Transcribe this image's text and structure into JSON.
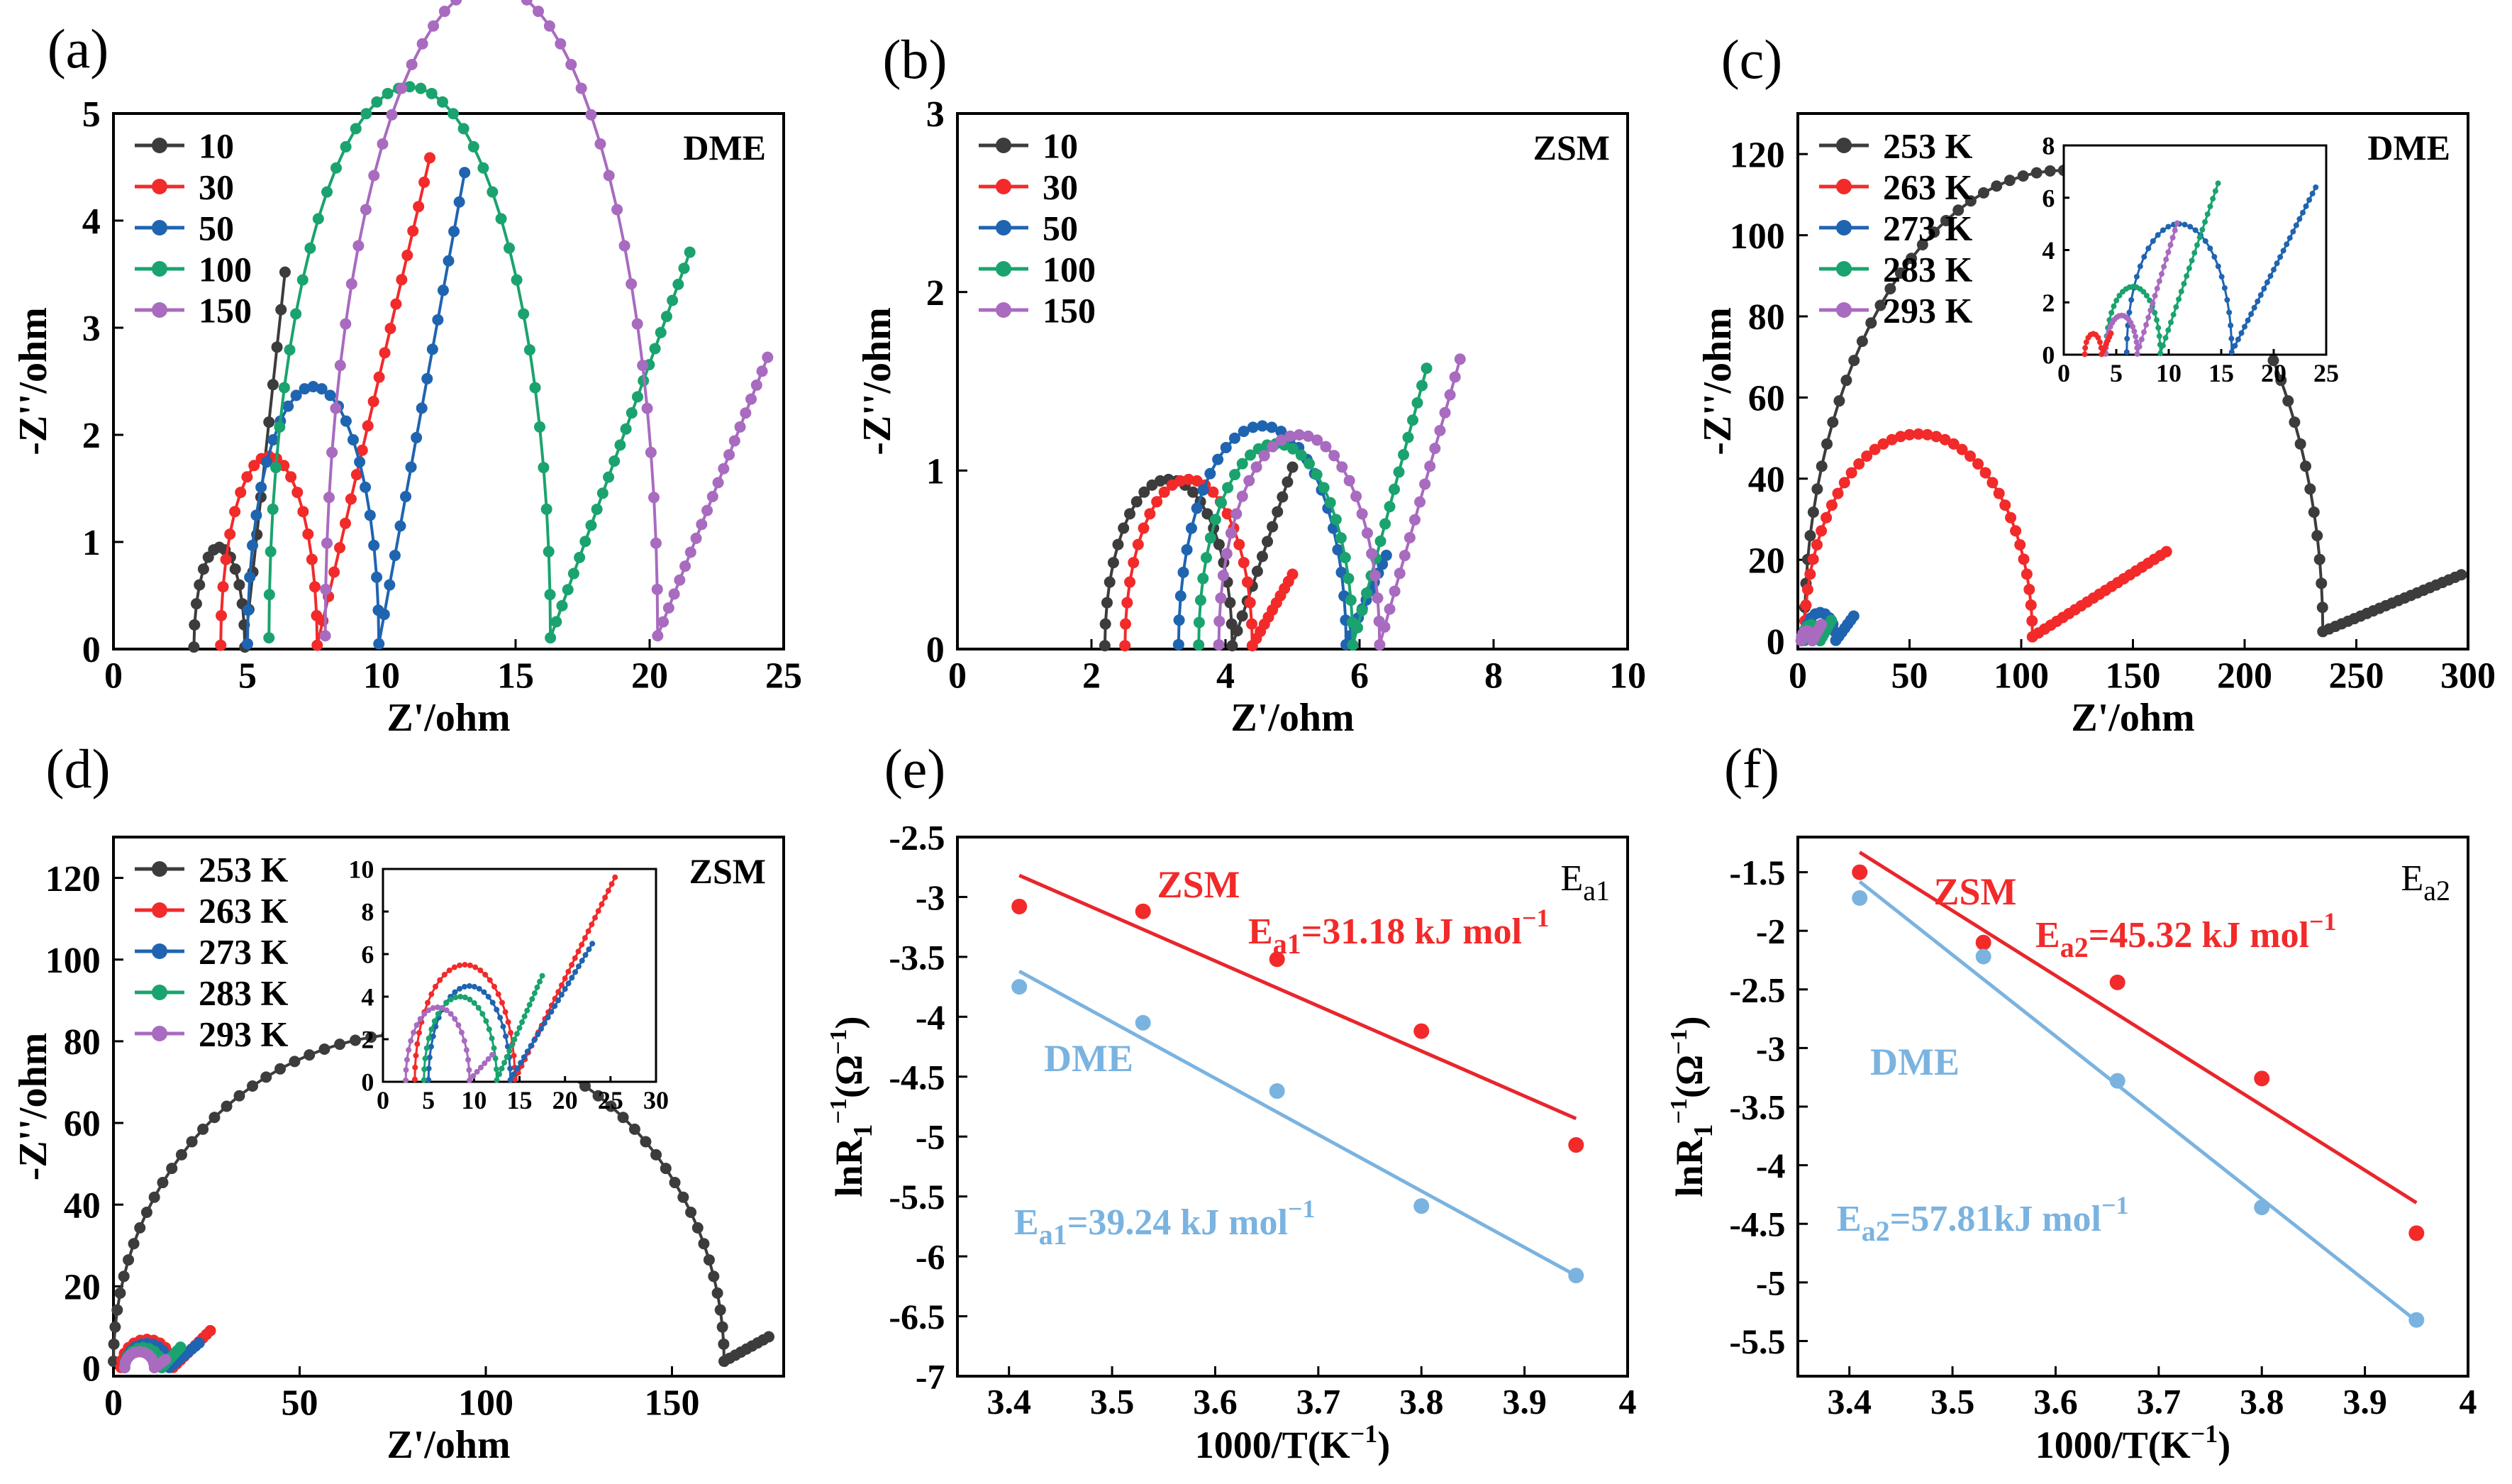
{
  "figure": {
    "colors": {
      "dark": "#3c3c3c",
      "red": "#f22a2a",
      "blue": "#1f64b0",
      "green": "#1aa36e",
      "purple": "#a86bbf",
      "light_blue": "#7ab3e0",
      "fit_red": "#e8262c"
    }
  },
  "chart_data": [
    {
      "id": "a",
      "type": "scatter",
      "panel_label": "(a)",
      "annotation": "DME",
      "xlabel": "Z'/ohm",
      "ylabel": "-Z''/ohm",
      "xlim": [
        0,
        25
      ],
      "ylim": [
        0,
        5
      ],
      "xticks": [
        0,
        5,
        10,
        15,
        20,
        25
      ],
      "yticks": [
        0,
        1,
        2,
        3,
        4,
        5
      ],
      "series": [
        {
          "name": "10",
          "color": "#3c3c3c",
          "x0": 3.0,
          "r": 0.95,
          "tailLen": 1.5,
          "tailRise": 3.5,
          "n": 14,
          "nt": 10
        },
        {
          "name": "30",
          "color": "#f22a2a",
          "x0": 4.0,
          "r": 1.8,
          "tailLen": 4.2,
          "tailRise": 4.55,
          "n": 20,
          "nt": 20
        },
        {
          "name": "50",
          "color": "#1f64b0",
          "x0": 5.0,
          "r": 2.45,
          "tailLen": 3.2,
          "tailRise": 4.4,
          "n": 24,
          "nt": 16
        },
        {
          "name": "100",
          "color": "#1aa36e",
          "x0": 5.8,
          "r": 5.25,
          "tailLen": 5.2,
          "tailRise": 3.6,
          "n": 40,
          "nt": 24
        },
        {
          "name": "150",
          "color": "#a86bbf",
          "x0": 7.9,
          "r": 6.2,
          "tailLen": 4.1,
          "tailRise": 2.6,
          "n": 44,
          "nt": 20
        }
      ]
    },
    {
      "id": "b",
      "type": "scatter",
      "panel_label": "(b)",
      "annotation": "ZSM",
      "xlabel": "Z'/ohm",
      "ylabel": "-Z''/ohm",
      "xlim": [
        0,
        10
      ],
      "ylim": [
        0,
        3
      ],
      "xticks": [
        0,
        2,
        4,
        6,
        8,
        10
      ],
      "yticks": [
        0,
        1,
        2,
        3
      ],
      "series": [
        {
          "name": "10",
          "color": "#3c3c3c",
          "x0": 2.2,
          "r": 0.95,
          "tailLen": 0.9,
          "tailRise": 1.0,
          "n": 24,
          "nt": 12
        },
        {
          "name": "30",
          "color": "#f22a2a",
          "x0": 2.5,
          "r": 0.95,
          "tailLen": 0.6,
          "tailRise": 0.4,
          "n": 24,
          "nt": 10
        },
        {
          "name": "50",
          "color": "#1f64b0",
          "x0": 3.3,
          "r": 1.25,
          "tailLen": 0.6,
          "tailRise": 0.5,
          "n": 28,
          "nt": 10
        },
        {
          "name": "100",
          "color": "#1aa36e",
          "x0": 3.6,
          "r": 1.15,
          "tailLen": 1.1,
          "tailRise": 1.55,
          "n": 28,
          "nt": 16
        },
        {
          "name": "150",
          "color": "#a86bbf",
          "x0": 3.9,
          "r": 1.2,
          "tailLen": 1.2,
          "tailRise": 1.6,
          "n": 28,
          "nt": 16
        }
      ]
    },
    {
      "id": "c",
      "type": "scatter",
      "panel_label": "(c)",
      "annotation": "DME",
      "xlabel": "Z'/ohm",
      "ylabel": "-Z''/ohm",
      "xlim": [
        0,
        300
      ],
      "ylim": [
        -2,
        130
      ],
      "xticks": [
        0,
        50,
        100,
        150,
        200,
        250,
        300
      ],
      "yticks": [
        0,
        20,
        40,
        60,
        80,
        100,
        120
      ],
      "series": [
        {
          "name": "253 K",
          "color": "#3c3c3c",
          "x0": 3,
          "r": 116,
          "tailLen": 62,
          "tailRise": 14,
          "n": 60,
          "nt": 22
        },
        {
          "name": "263 K",
          "color": "#f22a2a",
          "x0": 3,
          "r": 51,
          "tailLen": 60,
          "tailRise": 21,
          "n": 40,
          "nt": 22
        },
        {
          "name": "273 K",
          "color": "#1f64b0",
          "x0": 3,
          "r": 7,
          "tailLen": 8,
          "tailRise": 6,
          "n": 10,
          "nt": 6
        },
        {
          "name": "283 K",
          "color": "#1aa36e",
          "x0": 2,
          "r": 4,
          "tailLen": 5,
          "tailRise": 5,
          "n": 8,
          "nt": 6
        },
        {
          "name": "293 K",
          "color": "#a86bbf",
          "x0": 1.5,
          "r": 2.5,
          "tailLen": 4,
          "tailRise": 4,
          "n": 8,
          "nt": 6
        }
      ],
      "inset": {
        "xlim": [
          0,
          25
        ],
        "ylim": [
          0,
          8
        ],
        "xticks": [
          0,
          5,
          10,
          15,
          20,
          25
        ],
        "yticks": [
          0,
          2,
          4,
          6,
          8
        ],
        "series": [
          {
            "color": "#1f64b0",
            "x0": 6,
            "r": 5,
            "tailLen": 8,
            "tailRise": 6.3,
            "n": 30,
            "nt": 26
          },
          {
            "color": "#1aa36e",
            "x0": 4,
            "r": 2.6,
            "tailLen": 5.5,
            "tailRise": 6.5,
            "n": 24,
            "nt": 22
          },
          {
            "color": "#a86bbf",
            "x0": 4,
            "r": 1.5,
            "tailLen": 3.8,
            "tailRise": 5.0,
            "n": 20,
            "nt": 18
          },
          {
            "color": "#f22a2a",
            "x0": 2,
            "r": 0.8,
            "tailLen": 0.9,
            "tailRise": 0.8,
            "n": 10,
            "nt": 6
          }
        ]
      }
    },
    {
      "id": "d",
      "type": "scatter",
      "panel_label": "(d)",
      "annotation": "ZSM",
      "xlabel": "Z'/ohm",
      "ylabel": "-Z''/ohm",
      "xlim": [
        0,
        180
      ],
      "ylim": [
        -2,
        130
      ],
      "xticks": [
        0,
        50,
        100,
        150
      ],
      "yticks": [
        0,
        20,
        40,
        60,
        80,
        100,
        120
      ],
      "series": [
        {
          "name": "253 K",
          "color": "#3c3c3c",
          "x0": 0,
          "r": 82,
          "tailLen": 12,
          "tailRise": 6,
          "n": 60,
          "nt": 8
        },
        {
          "name": "263 K",
          "color": "#f22a2a",
          "x0": 2,
          "r": 7,
          "tailLen": 10,
          "tailRise": 9,
          "n": 12,
          "nt": 10
        },
        {
          "name": "273 K",
          "color": "#1f64b0",
          "x0": 3,
          "r": 6,
          "tailLen": 8,
          "tailRise": 6,
          "n": 12,
          "nt": 8
        },
        {
          "name": "283 K",
          "color": "#1aa36e",
          "x0": 3,
          "r": 5,
          "tailLen": 5,
          "tailRise": 5,
          "n": 10,
          "nt": 6
        },
        {
          "name": "293 K",
          "color": "#a86bbf",
          "x0": 3,
          "r": 4,
          "tailLen": 3,
          "tailRise": 2,
          "n": 10,
          "nt": 4
        }
      ],
      "inset": {
        "xlim": [
          0,
          30
        ],
        "ylim": [
          0,
          10
        ],
        "xticks": [
          0,
          5,
          10,
          15,
          20,
          25,
          30
        ],
        "yticks": [
          0,
          2,
          4,
          6,
          8,
          10
        ],
        "series": [
          {
            "color": "#f22a2a",
            "x0": 3.5,
            "r": 5.5,
            "tailLen": 11,
            "tailRise": 9.5,
            "n": 30,
            "nt": 30
          },
          {
            "color": "#1f64b0",
            "x0": 5,
            "r": 4.5,
            "tailLen": 9,
            "tailRise": 6.4,
            "n": 26,
            "nt": 24
          },
          {
            "color": "#1aa36e",
            "x0": 4.5,
            "r": 4.0,
            "tailLen": 5,
            "tailRise": 4.9,
            "n": 24,
            "nt": 18
          },
          {
            "color": "#a86bbf",
            "x0": 2.5,
            "r": 3.5,
            "tailLen": 2.5,
            "tailRise": 1.2,
            "n": 22,
            "nt": 6
          }
        ]
      }
    },
    {
      "id": "e",
      "type": "scatter",
      "panel_label": "(e)",
      "corner_label_main": "E",
      "corner_label_sub": "a1",
      "xlabel": "1000/T(K",
      "xlabel_sup": "−1",
      "xlabel_close": ")",
      "ylabel": "lnR",
      "ylabel_sub": "1",
      "ylabel_sup1": "−1",
      "ylabel_mid": "(Ω",
      "ylabel_sup2": "−1",
      "ylabel_close": ")",
      "xlim": [
        3.35,
        4.0
      ],
      "ylim": [
        -7.0,
        -2.5
      ],
      "xticks": [
        3.4,
        3.5,
        3.6,
        3.7,
        3.8,
        3.9,
        4.0
      ],
      "yticks": [
        -7.0,
        -6.5,
        -6.0,
        -5.5,
        -5.0,
        -4.5,
        -4.0,
        -3.5,
        -3.0,
        -2.5
      ],
      "series": [
        {
          "name": "ZSM",
          "color": "#f22a2a",
          "line_color": "#e8262c",
          "x": [
            3.41,
            3.53,
            3.66,
            3.8,
            3.95
          ],
          "y": [
            -3.08,
            -3.12,
            -3.52,
            -4.12,
            -5.07
          ],
          "fit": [
            [
              3.41,
              -2.82
            ],
            [
              3.95,
              -4.85
            ]
          ],
          "label_main": "E",
          "label_sub": "a1",
          "label_text": "=31.18 kJ mol",
          "label_sup": "−1"
        },
        {
          "name": "DME",
          "color": "#7ab3e0",
          "line_color": "#7ab3e0",
          "x": [
            3.41,
            3.53,
            3.66,
            3.8,
            3.95
          ],
          "y": [
            -3.75,
            -4.05,
            -4.62,
            -5.58,
            -6.16
          ],
          "fit": [
            [
              3.41,
              -3.62
            ],
            [
              3.95,
              -6.16
            ]
          ],
          "label_main": "E",
          "label_sub": "a1",
          "label_text": "=39.24 kJ mol",
          "label_sup": "−1"
        }
      ]
    },
    {
      "id": "f",
      "type": "scatter",
      "panel_label": "(f)",
      "corner_label_main": "E",
      "corner_label_sub": "a2",
      "xlabel": "1000/T(K",
      "xlabel_sup": "−1",
      "xlabel_close": ")",
      "ylabel": "lnR",
      "ylabel_sub": "1",
      "ylabel_sup1": "−1",
      "ylabel_mid": "(Ω",
      "ylabel_sup2": "−1",
      "ylabel_close": ")",
      "xlim": [
        3.35,
        4.0
      ],
      "ylim": [
        -5.8,
        -1.2
      ],
      "xticks": [
        3.4,
        3.5,
        3.6,
        3.7,
        3.8,
        3.9,
        4.0
      ],
      "yticks": [
        -5.5,
        -5.0,
        -4.5,
        -4.0,
        -3.5,
        -3.0,
        -2.5,
        -2.0,
        -1.5
      ],
      "series": [
        {
          "name": "ZSM",
          "color": "#f22a2a",
          "line_color": "#e8262c",
          "x": [
            3.41,
            3.53,
            3.66,
            3.8,
            3.95
          ],
          "y": [
            -1.5,
            -2.1,
            -2.44,
            -3.26,
            -4.58
          ],
          "fit": [
            [
              3.41,
              -1.33
            ],
            [
              3.95,
              -4.32
            ]
          ],
          "label_main": "E",
          "label_sub": "a2",
          "label_text": "=45.32 kJ mol",
          "label_sup": "−1"
        },
        {
          "name": "DME",
          "color": "#7ab3e0",
          "line_color": "#7ab3e0",
          "x": [
            3.41,
            3.53,
            3.66,
            3.8,
            3.95
          ],
          "y": [
            -1.72,
            -2.22,
            -3.28,
            -4.36,
            -5.32
          ],
          "fit": [
            [
              3.41,
              -1.58
            ],
            [
              3.95,
              -5.33
            ]
          ],
          "label_main": "E",
          "label_sub": "a2",
          "label_text": "=57.81kJ mol",
          "label_sup": "−1"
        }
      ]
    }
  ]
}
